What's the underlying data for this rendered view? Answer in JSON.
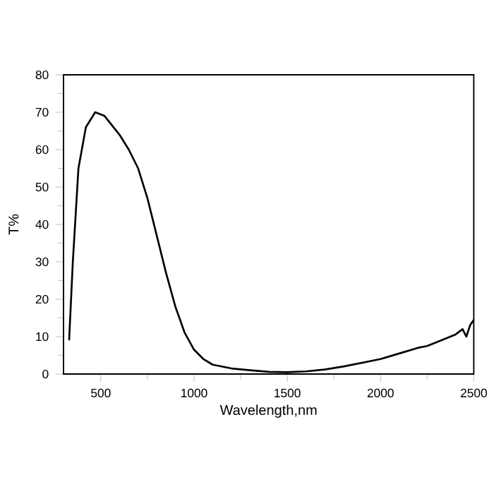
{
  "chart_data": {
    "type": "line",
    "xlabel": "Wavelength,nm",
    "ylabel": "T%",
    "xlim": [
      300,
      2500
    ],
    "ylim": [
      0,
      80
    ],
    "xticks": [
      500,
      1000,
      1500,
      2000,
      2500
    ],
    "yticks": [
      0,
      10,
      20,
      30,
      40,
      50,
      60,
      70,
      80
    ],
    "grid": false,
    "marker": "none",
    "line_style": "solid",
    "series": [
      {
        "color": "#000000",
        "x": [
          330,
          350,
          380,
          420,
          470,
          520,
          600,
          650,
          700,
          750,
          800,
          850,
          900,
          950,
          1000,
          1050,
          1100,
          1200,
          1300,
          1400,
          1500,
          1600,
          1700,
          1800,
          1900,
          2000,
          2100,
          2200,
          2250,
          2300,
          2400,
          2440,
          2460,
          2480,
          2500
        ],
        "values": [
          9,
          30,
          55,
          66,
          70,
          69,
          64,
          60,
          55,
          47,
          37,
          27,
          18,
          11,
          6.5,
          4,
          2.5,
          1.5,
          1,
          0.6,
          0.5,
          0.7,
          1.2,
          2,
          3,
          4,
          5.5,
          7,
          7.5,
          8.5,
          10.5,
          12,
          10,
          13,
          14.5
        ]
      }
    ]
  }
}
